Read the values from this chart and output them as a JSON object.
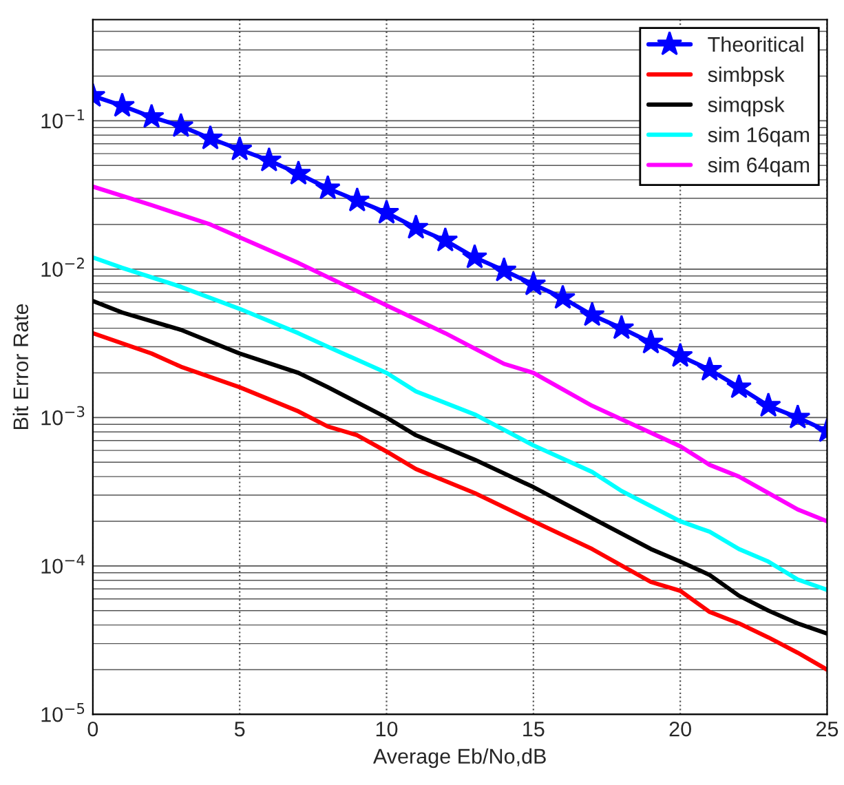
{
  "chart_data": {
    "type": "line",
    "xlabel": "Average Eb/No,dB",
    "ylabel": "Bit Error Rate",
    "log": "y",
    "grid": true,
    "legend": "top right",
    "line_style": "solid",
    "xlim": [
      0,
      25
    ],
    "xticks": [
      0,
      5,
      10,
      15,
      20,
      25
    ],
    "ylim": [
      1e-05,
      0.48
    ],
    "yticks": [
      {
        "value": 1e-05,
        "label": "10$^{−5}$"
      },
      {
        "value": 0.0001,
        "label": "10$^{−4}$"
      },
      {
        "value": 0.001,
        "label": "10$^{−3}$"
      },
      {
        "value": 0.01,
        "label": "10$^{−2}$"
      },
      {
        "value": 0.1,
        "label": "10$^{−1}$"
      }
    ],
    "series": [
      {
        "name": "Theoritical",
        "color": "#0000ff",
        "marker": "star",
        "x": [
          0,
          1,
          2,
          3,
          4,
          5,
          6,
          7,
          8,
          9,
          10,
          11,
          12,
          13,
          14,
          15,
          16,
          17,
          18,
          19,
          20,
          21,
          22,
          23,
          24,
          25
        ],
        "values": [
          0.147,
          0.126,
          0.106,
          0.092,
          0.076,
          0.064,
          0.054,
          0.044,
          0.035,
          0.029,
          0.024,
          0.019,
          0.0156,
          0.012,
          0.0098,
          0.0079,
          0.0064,
          0.0049,
          0.004,
          0.0032,
          0.0026,
          0.0021,
          0.0016,
          0.0012,
          0.001,
          0.00081
        ]
      },
      {
        "name": "simbpsk",
        "color": "#ff0000",
        "marker": "none",
        "x": [
          0,
          2,
          3,
          5,
          7,
          8,
          9,
          10,
          11,
          13,
          15,
          17,
          19,
          20,
          21,
          22,
          23,
          24,
          25
        ],
        "values": [
          0.0037,
          0.0027,
          0.0022,
          0.0016,
          0.0011,
          0.00087,
          0.00076,
          0.00059,
          0.00045,
          0.00031,
          0.0002,
          0.00013,
          7.8e-05,
          6.8e-05,
          4.9e-05,
          4.1e-05,
          3.3e-05,
          2.6e-05,
          2e-05
        ]
      },
      {
        "name": "simqpsk",
        "color": "#000000",
        "marker": "none",
        "x": [
          0,
          1,
          3,
          5,
          7,
          8,
          10,
          11,
          13,
          15,
          17,
          19,
          20,
          21,
          22,
          23,
          24,
          25
        ],
        "values": [
          0.0061,
          0.0051,
          0.0039,
          0.0027,
          0.002,
          0.0016,
          0.001,
          0.00076,
          0.00052,
          0.00034,
          0.00021,
          0.00013,
          0.000107,
          8.7e-05,
          6.3e-05,
          5e-05,
          4.1e-05,
          3.5e-05
        ]
      },
      {
        "name": "sim 16qam",
        "color": "#00ffff",
        "marker": "none",
        "x": [
          0,
          1,
          3,
          5,
          7,
          8,
          10,
          11,
          13,
          15,
          17,
          18,
          20,
          21,
          22,
          23,
          24,
          25
        ],
        "values": [
          0.012,
          0.0102,
          0.0076,
          0.0054,
          0.0037,
          0.003,
          0.002,
          0.0015,
          0.00105,
          0.00065,
          0.00043,
          0.00032,
          0.0002,
          0.00017,
          0.00013,
          0.000107,
          8.1e-05,
          6.9e-05
        ]
      },
      {
        "name": "sim 64qam",
        "color": "#ff00ff",
        "marker": "none",
        "x": [
          0,
          2,
          4,
          7,
          10,
          12,
          14,
          15,
          17,
          20,
          21,
          22,
          23,
          24,
          25
        ],
        "values": [
          0.036,
          0.027,
          0.02,
          0.011,
          0.0057,
          0.0037,
          0.0023,
          0.002,
          0.0012,
          0.00064,
          0.00048,
          0.0004,
          0.00031,
          0.00024,
          0.0002
        ]
      }
    ]
  }
}
